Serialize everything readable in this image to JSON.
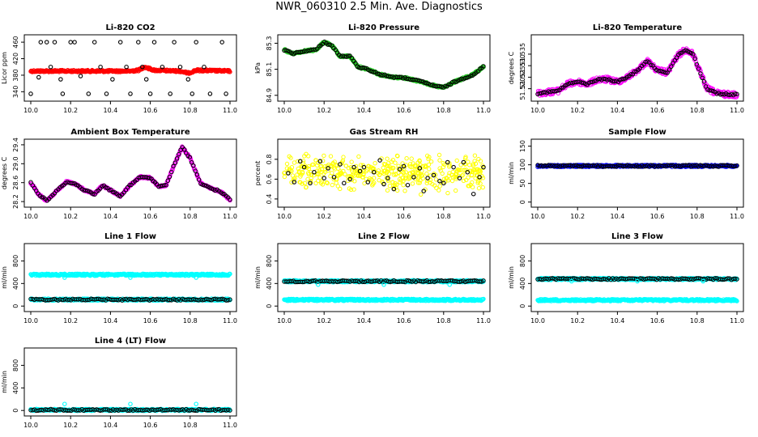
{
  "title": "NWR_060310  2.5 Min. Ave. Diagnostics",
  "colors": {
    "black": "#000000",
    "red": "#ff0000",
    "green": "#22c422",
    "magenta": "#ff00ff",
    "yellow": "#ffff00",
    "cyan": "#00ffff",
    "blue": "#0000ff"
  },
  "chart_data": [
    {
      "id": "co2",
      "type": "scatter",
      "title": "Li-820 CO2",
      "ylabel": "Licor ppm",
      "xlim": [
        10.0,
        11.0
      ],
      "ylim": [
        325,
        470
      ],
      "xticks": [
        "10.0",
        "10.2",
        "10.4",
        "10.6",
        "10.8",
        "11.0"
      ],
      "yticks": [
        "340",
        "380",
        "420",
        "460"
      ],
      "series": [
        {
          "name": "raw",
          "color": "red",
          "style": "dense",
          "x": [
            10.0,
            10.5,
            10.54,
            10.57,
            10.62,
            10.75,
            10.79,
            10.83,
            11.0
          ],
          "y": [
            390,
            390,
            392,
            400,
            392,
            390,
            385,
            392,
            390
          ]
        },
        {
          "name": "samples",
          "color": "black",
          "style": "points",
          "x": [
            10.0,
            10.04,
            10.05,
            10.08,
            10.1,
            10.12,
            10.15,
            10.16,
            10.2,
            10.22,
            10.25,
            10.29,
            10.32,
            10.35,
            10.38,
            10.41,
            10.45,
            10.48,
            10.5,
            10.54,
            10.56,
            10.58,
            10.6,
            10.62,
            10.66,
            10.7,
            10.72,
            10.75,
            10.79,
            10.81,
            10.83,
            10.87,
            10.9,
            10.96,
            10.98
          ],
          "y": [
            335,
            375,
            460,
            460,
            400,
            460,
            370,
            335,
            460,
            460,
            378,
            335,
            460,
            400,
            335,
            370,
            460,
            400,
            335,
            460,
            400,
            370,
            335,
            460,
            400,
            335,
            460,
            400,
            370,
            335,
            460,
            400,
            335,
            460,
            335
          ]
        }
      ]
    },
    {
      "id": "pressure",
      "type": "scatter",
      "title": "Li-820 Pressure",
      "ylabel": "kPa",
      "xlim": [
        10.0,
        11.0
      ],
      "ylim": [
        84.88,
        85.34
      ],
      "xticks": [
        "10.0",
        "10.2",
        "10.4",
        "10.6",
        "10.8",
        "11.0"
      ],
      "yticks": [
        "84.9",
        "85.1",
        "85.3"
      ],
      "series": [
        {
          "name": "raw",
          "color": "green",
          "style": "dense",
          "x": [
            10.0,
            10.04,
            10.1,
            10.16,
            10.2,
            10.24,
            10.28,
            10.33,
            10.37,
            10.42,
            10.48,
            10.55,
            10.62,
            10.7,
            10.76,
            10.8,
            10.85,
            10.9,
            10.95,
            11.0
          ],
          "y": [
            85.25,
            85.22,
            85.24,
            85.25,
            85.31,
            85.28,
            85.2,
            85.2,
            85.12,
            85.1,
            85.06,
            85.04,
            85.03,
            85.0,
            84.97,
            84.96,
            85.0,
            85.03,
            85.06,
            85.12
          ]
        },
        {
          "name": "samples",
          "color": "black",
          "style": "sparse",
          "x": [
            10.0,
            10.04,
            10.1,
            10.16,
            10.2,
            10.24,
            10.28,
            10.33,
            10.37,
            10.42,
            10.48,
            10.55,
            10.62,
            10.7,
            10.76,
            10.8,
            10.85,
            10.9,
            10.95,
            11.0
          ],
          "y": [
            85.25,
            85.22,
            85.24,
            85.25,
            85.31,
            85.28,
            85.2,
            85.2,
            85.12,
            85.1,
            85.06,
            85.04,
            85.03,
            85.0,
            84.97,
            84.96,
            85.0,
            85.03,
            85.06,
            85.12
          ]
        }
      ]
    },
    {
      "id": "temperature",
      "type": "scatter",
      "title": "Li-820 Temperature",
      "ylabel": "degrees C",
      "xlim": [
        10.0,
        11.0
      ],
      "ylim": [
        51.516,
        51.542
      ],
      "xticks": [
        "10.0",
        "10.2",
        "10.4",
        "10.6",
        "10.8",
        "11.0"
      ],
      "yticks": [
        "51.520",
        "51.525",
        "51.530",
        "51.535"
      ],
      "series": [
        {
          "name": "raw",
          "color": "magenta",
          "style": "dense",
          "noise": 0.0012,
          "x": [
            10.0,
            10.05,
            10.1,
            10.15,
            10.2,
            10.25,
            10.3,
            10.35,
            10.4,
            10.45,
            10.5,
            10.55,
            10.6,
            10.65,
            10.7,
            10.74,
            10.78,
            10.82,
            10.85,
            10.9,
            10.95,
            11.0
          ],
          "y": [
            51.518,
            51.5185,
            51.519,
            51.522,
            51.523,
            51.522,
            51.524,
            51.524,
            51.523,
            51.525,
            51.528,
            51.532,
            51.528,
            51.527,
            51.534,
            51.537,
            51.535,
            51.526,
            51.52,
            51.518,
            51.5175,
            51.5175
          ]
        },
        {
          "name": "samples",
          "color": "black",
          "style": "sparse",
          "x": [
            10.0,
            10.05,
            10.1,
            10.15,
            10.2,
            10.25,
            10.3,
            10.35,
            10.4,
            10.45,
            10.5,
            10.55,
            10.6,
            10.65,
            10.7,
            10.74,
            10.78,
            10.82,
            10.85,
            10.9,
            10.95,
            11.0
          ],
          "y": [
            51.518,
            51.5185,
            51.519,
            51.522,
            51.523,
            51.522,
            51.524,
            51.524,
            51.523,
            51.525,
            51.528,
            51.532,
            51.528,
            51.527,
            51.534,
            51.537,
            51.535,
            51.526,
            51.52,
            51.518,
            51.5175,
            51.5175
          ]
        }
      ]
    },
    {
      "id": "ambient",
      "type": "scatter",
      "title": "Ambient Box Temperature",
      "ylabel": "degrees C",
      "xlim": [
        10.0,
        11.0
      ],
      "ylim": [
        28.15,
        29.45
      ],
      "xticks": [
        "10.0",
        "10.2",
        "10.4",
        "10.6",
        "10.8",
        "11.0"
      ],
      "yticks": [
        "28.2",
        "28.6",
        "29.0",
        "29.4"
      ],
      "series": [
        {
          "name": "raw",
          "color": "magenta",
          "style": "dense",
          "x": [
            10.0,
            10.04,
            10.08,
            10.13,
            10.18,
            10.22,
            10.27,
            10.32,
            10.36,
            10.4,
            10.45,
            10.5,
            10.55,
            10.6,
            10.64,
            10.68,
            10.72,
            10.76,
            10.8,
            10.85,
            10.9,
            10.95,
            11.0
          ],
          "y": [
            28.6,
            28.35,
            28.22,
            28.42,
            28.62,
            28.58,
            28.44,
            28.36,
            28.54,
            28.44,
            28.32,
            28.55,
            28.72,
            28.7,
            28.52,
            28.55,
            28.98,
            29.35,
            29.12,
            28.6,
            28.48,
            28.42,
            28.24
          ]
        },
        {
          "name": "samples",
          "color": "black",
          "style": "sparse",
          "x": [
            10.0,
            10.04,
            10.08,
            10.13,
            10.18,
            10.22,
            10.27,
            10.32,
            10.36,
            10.4,
            10.45,
            10.5,
            10.55,
            10.6,
            10.64,
            10.68,
            10.72,
            10.76,
            10.8,
            10.85,
            10.9,
            10.95,
            11.0
          ],
          "y": [
            28.6,
            28.35,
            28.22,
            28.42,
            28.62,
            28.58,
            28.44,
            28.36,
            28.54,
            28.44,
            28.32,
            28.55,
            28.72,
            28.7,
            28.52,
            28.55,
            28.98,
            29.35,
            29.12,
            28.6,
            28.48,
            28.42,
            28.24
          ]
        }
      ]
    },
    {
      "id": "rh",
      "type": "scatter",
      "title": "Gas Stream RH",
      "ylabel": "percent",
      "xlim": [
        10.0,
        11.0
      ],
      "ylim": [
        0.35,
        0.97
      ],
      "xticks": [
        "10.0",
        "10.2",
        "10.4",
        "10.6",
        "10.8",
        "11.0"
      ],
      "yticks": [
        "0.4",
        "0.6",
        "0.8"
      ],
      "series": [
        {
          "name": "raw",
          "color": "yellow",
          "style": "scatter-noise",
          "noise": 0.16,
          "x": [
            10.0,
            11.0
          ],
          "y": [
            0.66,
            0.66
          ]
        },
        {
          "name": "samples",
          "color": "black",
          "style": "points",
          "x": [
            10.02,
            10.05,
            10.08,
            10.1,
            10.13,
            10.15,
            10.18,
            10.2,
            10.22,
            10.25,
            10.28,
            10.3,
            10.33,
            10.35,
            10.38,
            10.4,
            10.42,
            10.45,
            10.48,
            10.5,
            10.52,
            10.55,
            10.58,
            10.6,
            10.62,
            10.65,
            10.68,
            10.7,
            10.72,
            10.75,
            10.78,
            10.8,
            10.82,
            10.85,
            10.88,
            10.9,
            10.92,
            10.95,
            10.98,
            11.0
          ],
          "y": [
            0.66,
            0.57,
            0.78,
            0.72,
            0.56,
            0.67,
            0.78,
            0.61,
            0.71,
            0.62,
            0.75,
            0.56,
            0.6,
            0.72,
            0.68,
            0.72,
            0.57,
            0.67,
            0.79,
            0.55,
            0.61,
            0.5,
            0.7,
            0.73,
            0.54,
            0.62,
            0.71,
            0.48,
            0.61,
            0.64,
            0.58,
            0.56,
            0.77,
            0.72,
            0.61,
            0.77,
            0.67,
            0.45,
            0.62,
            0.72
          ]
        }
      ]
    },
    {
      "id": "sample_flow",
      "type": "scatter",
      "title": "Sample Flow",
      "ylabel": "ml/min",
      "xlim": [
        10.0,
        11.0
      ],
      "ylim": [
        -5,
        160
      ],
      "xticks": [
        "10.0",
        "10.2",
        "10.4",
        "10.6",
        "10.8",
        "11.0"
      ],
      "yticks": [
        "0",
        "50",
        "100",
        "150"
      ],
      "series": [
        {
          "name": "raw",
          "color": "blue",
          "style": "dense",
          "x": [
            10.0,
            11.0
          ],
          "y": [
            97,
            97
          ]
        },
        {
          "name": "samples",
          "color": "black",
          "style": "sparse",
          "x": [
            10.0,
            11.0
          ],
          "y": [
            97,
            97
          ]
        }
      ]
    },
    {
      "id": "line1",
      "type": "scatter",
      "title": "Line 1 Flow",
      "ylabel": "ml/min",
      "xlim": [
        10.0,
        11.0
      ],
      "ylim": [
        -40,
        1050
      ],
      "xticks": [
        "10.0",
        "10.2",
        "10.4",
        "10.6",
        "10.8",
        "11.0"
      ],
      "yticks": [
        "0",
        "400",
        "800"
      ],
      "series": [
        {
          "name": "raw-high",
          "color": "cyan",
          "style": "dense",
          "x": [
            10.0,
            11.0
          ],
          "y": [
            555,
            555
          ]
        },
        {
          "name": "raw-low",
          "color": "cyan",
          "style": "dense",
          "x": [
            10.0,
            11.0
          ],
          "y": [
            115,
            115
          ]
        },
        {
          "name": "samples",
          "color": "black",
          "style": "sparse",
          "x": [
            10.0,
            11.0
          ],
          "y": [
            115,
            115
          ]
        },
        {
          "name": "spikes",
          "color": "cyan",
          "style": "points",
          "x": [
            10.17,
            10.5,
            10.83
          ],
          "y": [
            505,
            505,
            505
          ]
        }
      ]
    },
    {
      "id": "line2",
      "type": "scatter",
      "title": "Line 2 Flow",
      "ylabel": "ml/min",
      "xlim": [
        10.0,
        11.0
      ],
      "ylim": [
        -40,
        1050
      ],
      "xticks": [
        "10.0",
        "10.2",
        "10.4",
        "10.6",
        "10.8",
        "11.0"
      ],
      "yticks": [
        "0",
        "400",
        "800"
      ],
      "series": [
        {
          "name": "raw-high",
          "color": "cyan",
          "style": "dense",
          "x": [
            10.0,
            11.0
          ],
          "y": [
            440,
            440
          ]
        },
        {
          "name": "raw-low",
          "color": "cyan",
          "style": "dense",
          "x": [
            10.0,
            11.0
          ],
          "y": [
            110,
            110
          ]
        },
        {
          "name": "samples",
          "color": "black",
          "style": "sparse",
          "x": [
            10.0,
            11.0
          ],
          "y": [
            440,
            440
          ]
        },
        {
          "name": "spikes",
          "color": "cyan",
          "style": "points",
          "x": [
            10.17,
            10.5,
            10.83
          ],
          "y": [
            380,
            380,
            380
          ]
        }
      ]
    },
    {
      "id": "line3",
      "type": "scatter",
      "title": "Line 3 Flow",
      "ylabel": "ml/min",
      "xlim": [
        10.0,
        11.0
      ],
      "ylim": [
        -40,
        1050
      ],
      "xticks": [
        "10.0",
        "10.2",
        "10.4",
        "10.6",
        "10.8",
        "11.0"
      ],
      "yticks": [
        "0",
        "400",
        "800"
      ],
      "series": [
        {
          "name": "raw-high",
          "color": "cyan",
          "style": "dense",
          "x": [
            10.0,
            11.0
          ],
          "y": [
            480,
            480
          ]
        },
        {
          "name": "raw-low",
          "color": "cyan",
          "style": "dense",
          "x": [
            10.0,
            11.0
          ],
          "y": [
            105,
            105
          ]
        },
        {
          "name": "samples",
          "color": "black",
          "style": "sparse",
          "x": [
            10.0,
            11.0
          ],
          "y": [
            480,
            480
          ]
        },
        {
          "name": "spikes",
          "color": "cyan",
          "style": "points",
          "x": [
            10.17,
            10.5,
            10.83
          ],
          "y": [
            440,
            440,
            440
          ]
        }
      ]
    },
    {
      "id": "line4",
      "type": "scatter",
      "title": "Line 4 (LT) Flow",
      "ylabel": "ml/min",
      "xlim": [
        10.0,
        11.0
      ],
      "ylim": [
        -40,
        1050
      ],
      "xticks": [
        "10.0",
        "10.2",
        "10.4",
        "10.6",
        "10.8",
        "11.0"
      ],
      "yticks": [
        "0",
        "400",
        "800"
      ],
      "series": [
        {
          "name": "raw",
          "color": "cyan",
          "style": "dense",
          "x": [
            10.0,
            11.0
          ],
          "y": [
            10,
            10
          ]
        },
        {
          "name": "samples",
          "color": "black",
          "style": "sparse",
          "x": [
            10.0,
            11.0
          ],
          "y": [
            10,
            10
          ]
        },
        {
          "name": "spikes",
          "color": "cyan",
          "style": "points",
          "x": [
            10.17,
            10.5,
            10.83
          ],
          "y": [
            115,
            115,
            115
          ]
        }
      ]
    }
  ]
}
